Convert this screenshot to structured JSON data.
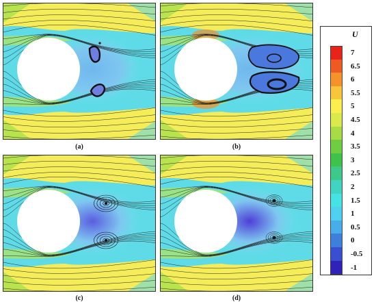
{
  "panels": [
    {
      "id": "a",
      "caption": "(a)",
      "variant": "small-bubbles"
    },
    {
      "id": "b",
      "caption": "(b)",
      "variant": "large-bubbles"
    },
    {
      "id": "c",
      "caption": "(c)",
      "variant": "spirals"
    },
    {
      "id": "d",
      "caption": "(d)",
      "variant": "dark-wake"
    }
  ],
  "legend": {
    "title": "U",
    "levels": [
      "7",
      "6.5",
      "6",
      "5.5",
      "5",
      "4.5",
      "4",
      "3.5",
      "3",
      "2.5",
      "2",
      "1.5",
      "1",
      "0.5",
      "0",
      "-0.5",
      "-1"
    ],
    "colors": [
      "#e8231a",
      "#ef5a22",
      "#f5922a",
      "#f8c63a",
      "#fbef4e",
      "#d9ea4a",
      "#a8dc45",
      "#6fcd44",
      "#3fc24a",
      "#3cc98a",
      "#40d4c2",
      "#46e3e5",
      "#4fd1f0",
      "#46aee8",
      "#3f7fdc",
      "#3a4fd0",
      "#2f22b8"
    ]
  }
}
